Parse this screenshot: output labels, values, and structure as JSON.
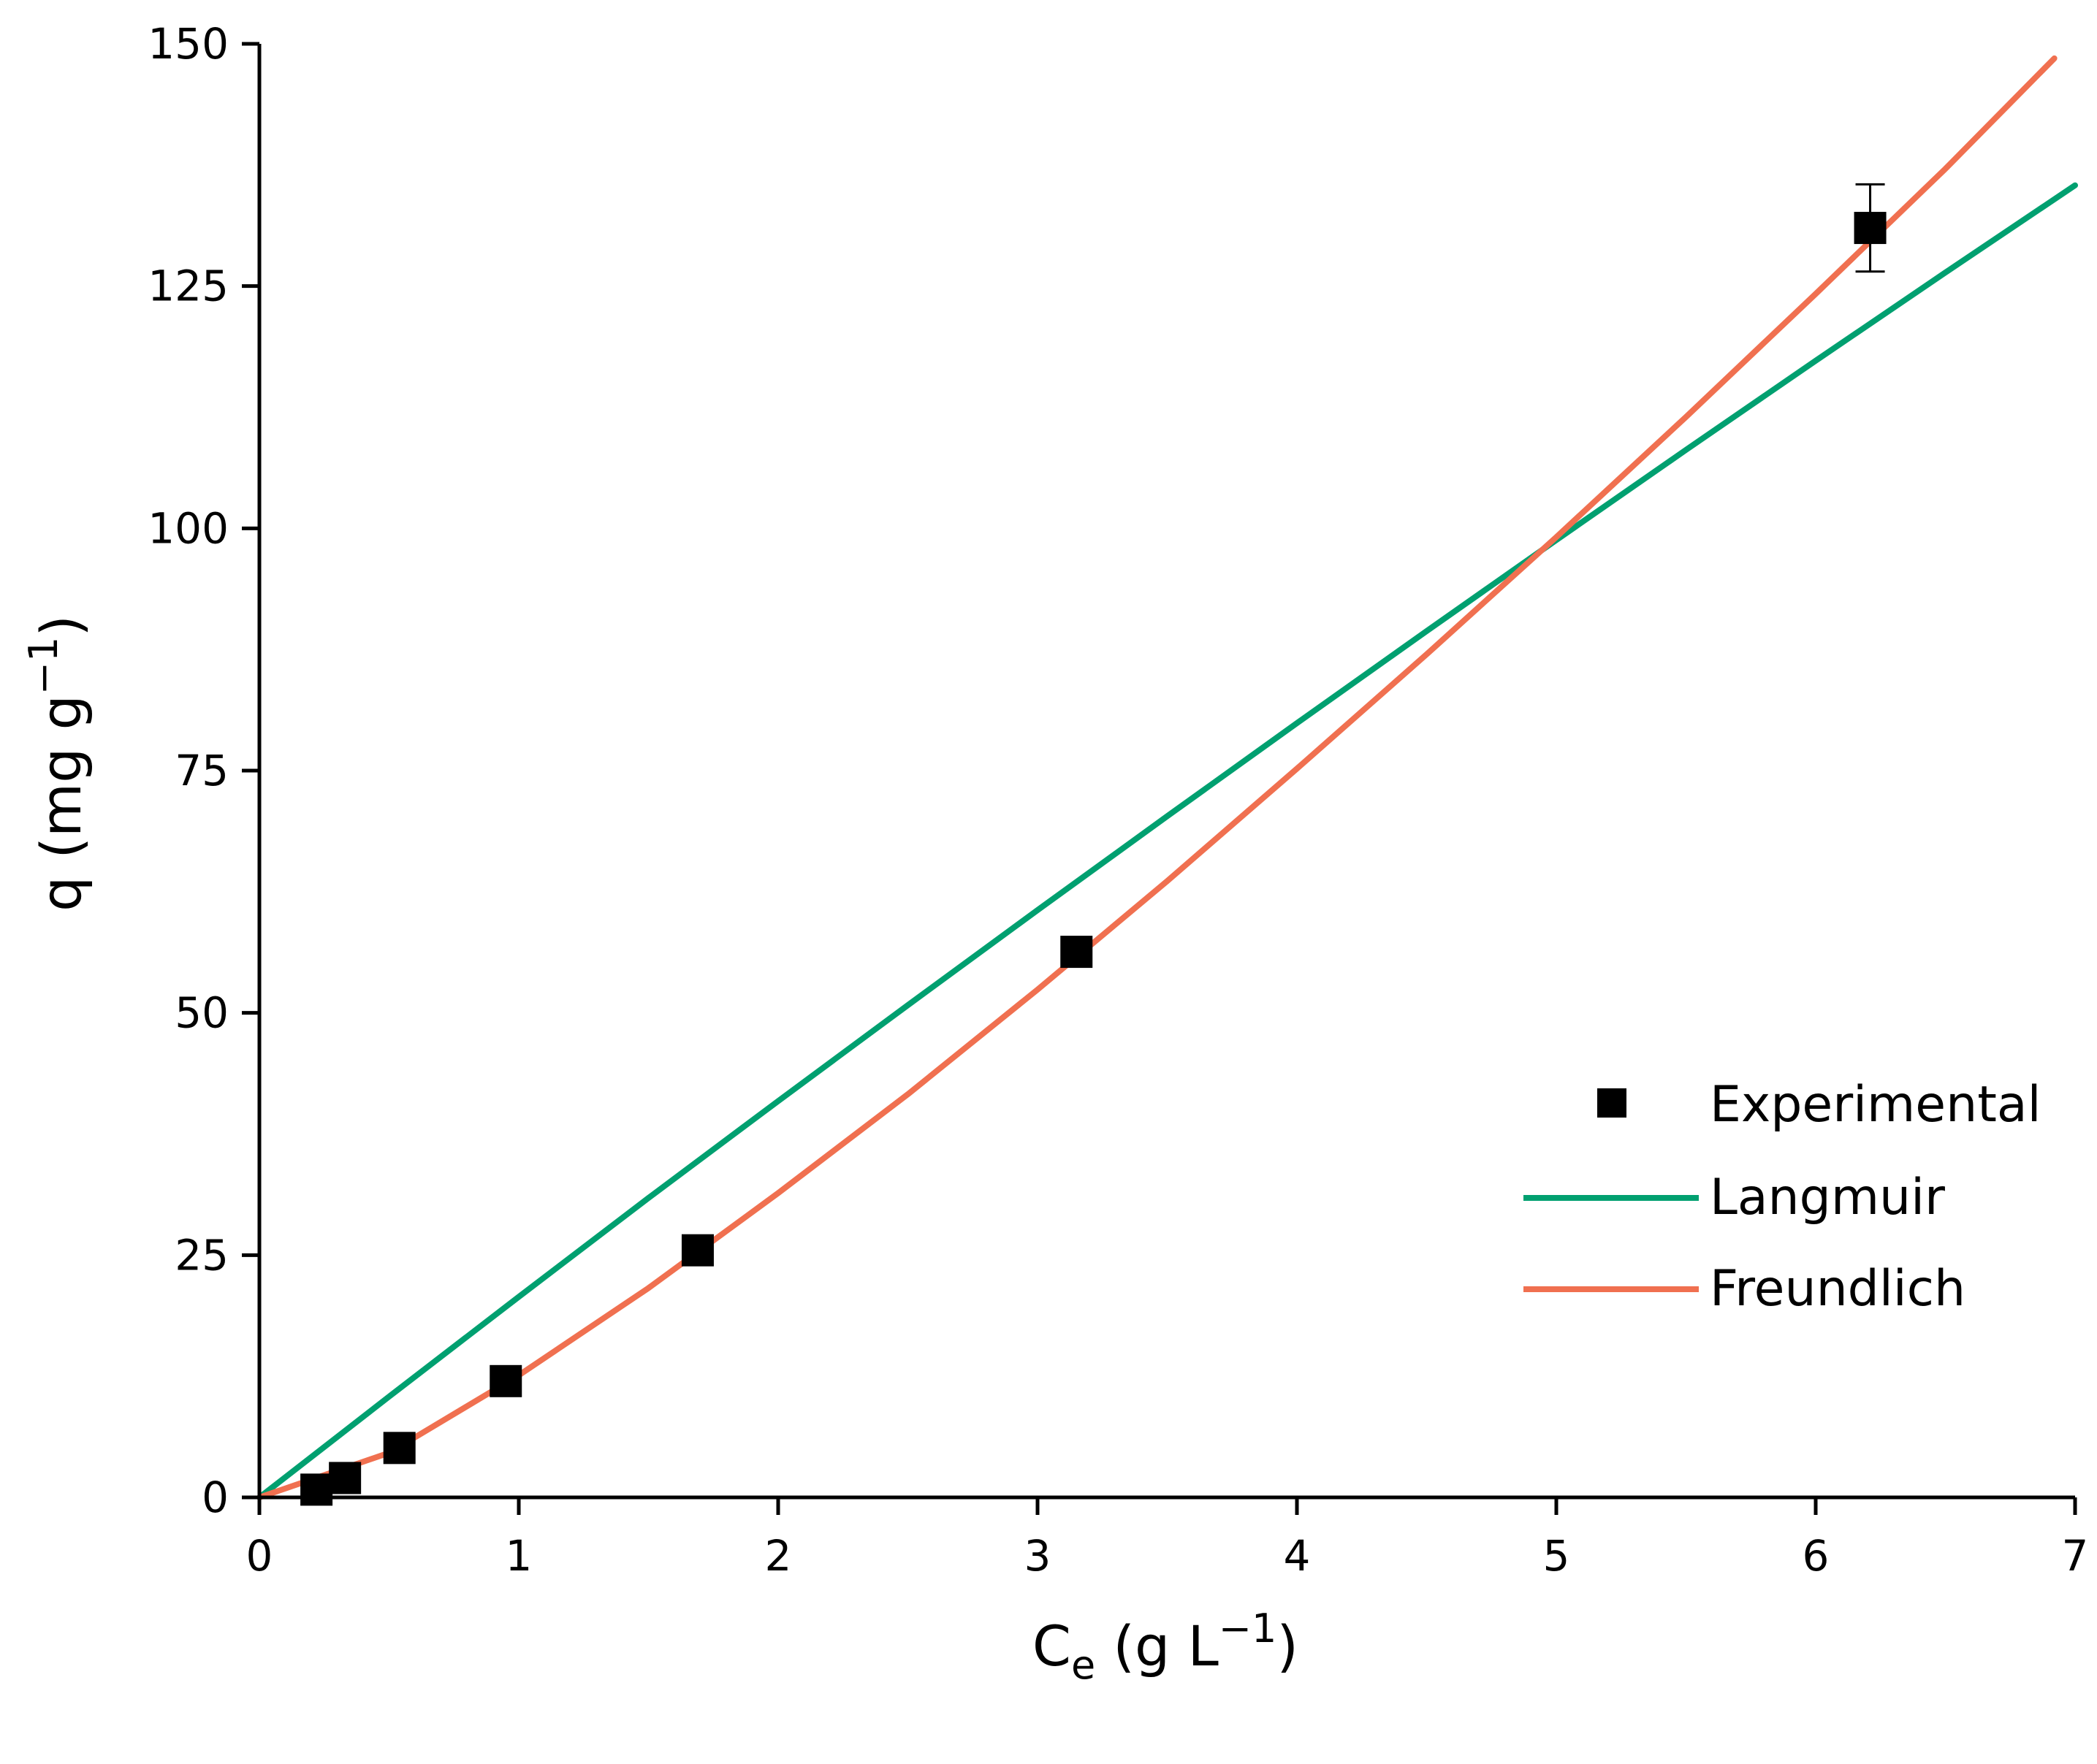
{
  "chart_data": {
    "type": "scatter",
    "title": "",
    "xlabel": {
      "main": "C",
      "sub": "e",
      "unit_open": " (g L",
      "sup": "−1",
      "unit_close": ")"
    },
    "ylabel": {
      "main": "q (mg g",
      "sup": "−1",
      "close": ")"
    },
    "xlim": [
      0,
      7
    ],
    "ylim": [
      0,
      150
    ],
    "xticks": [
      0,
      1,
      2,
      3,
      4,
      5,
      6,
      7
    ],
    "yticks": [
      0,
      25,
      50,
      75,
      100,
      125,
      150
    ],
    "xtick_labels": [
      "0",
      "1",
      "2",
      "3",
      "4",
      "5",
      "6",
      "7"
    ],
    "ytick_labels": [
      "0",
      "25",
      "50",
      "75",
      "100",
      "125",
      "150"
    ],
    "grid": false,
    "legend_position": "right",
    "series": [
      {
        "name": "Experimental",
        "kind": "points",
        "color": "#000000",
        "marker": "square",
        "points": [
          {
            "x": 0.22,
            "y": 0.8
          },
          {
            "x": 0.33,
            "y": 2.0
          },
          {
            "x": 0.54,
            "y": 5.1
          },
          {
            "x": 0.95,
            "y": 12.0
          },
          {
            "x": 1.69,
            "y": 25.5
          },
          {
            "x": 3.15,
            "y": 56.3
          },
          {
            "x": 6.21,
            "y": 131.0,
            "err": 4.5
          }
        ]
      },
      {
        "name": "Langmuir",
        "kind": "line",
        "color": "#00A070",
        "x": [
          0,
          0.5,
          1,
          1.5,
          2,
          2.5,
          3,
          3.5,
          4,
          4.5,
          5,
          5.5,
          6,
          6.5,
          7
        ],
        "y": [
          0,
          10.4,
          20.7,
          30.9,
          40.9,
          50.8,
          60.6,
          70.3,
          79.9,
          89.4,
          98.8,
          108.1,
          117.3,
          126.4,
          135.4
        ]
      },
      {
        "name": "Freundlich",
        "kind": "line",
        "color": "#F07050",
        "x": [
          0,
          0.5,
          1,
          1.5,
          2,
          2.5,
          3,
          3.5,
          4,
          4.5,
          5,
          5.5,
          6,
          6.5,
          6.92
        ],
        "y": [
          0,
          4.6,
          12.6,
          21.6,
          31.4,
          41.6,
          52.4,
          63.6,
          75.2,
          87.0,
          99.1,
          111.5,
          124.2,
          137.1,
          148.5
        ]
      }
    ]
  }
}
